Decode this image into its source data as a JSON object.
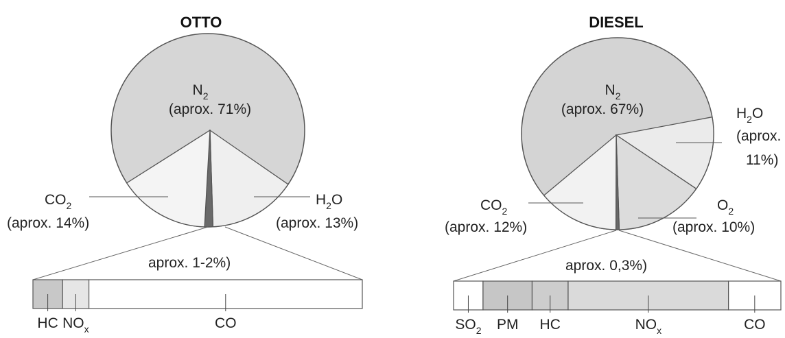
{
  "chart_data": [
    {
      "type": "pie",
      "title": "OTTO",
      "slices": [
        {
          "label": "N",
          "sub": "2",
          "value_text": "(aprox. 71%)",
          "value": 71,
          "color": "#d6d6d6"
        },
        {
          "label": "H",
          "sub": "2",
          "suffix": "O",
          "value_text": "(aprox. 13%)",
          "value": 13,
          "color": "#efefef"
        },
        {
          "label": "CO",
          "sub": "2",
          "value_text": "(aprox. 14%)",
          "value": 14,
          "color": "#f4f4f4"
        },
        {
          "label": "other",
          "value": 1.5,
          "color": "#6a6a6a"
        }
      ],
      "breakdown": {
        "title": "aprox. 1-2%)",
        "items": [
          {
            "label": "HC",
            "sub": "",
            "share": 0.09,
            "color": "#c8c8c8"
          },
          {
            "label": "NO",
            "sub": "x",
            "share": 0.08,
            "color": "#e6e6e6"
          },
          {
            "label": "CO",
            "sub": "",
            "share": 0.83,
            "color": "#ffffff"
          }
        ]
      }
    },
    {
      "type": "pie",
      "title": "DIESEL",
      "slices": [
        {
          "label": "N",
          "sub": "2",
          "value_text": "(aprox. 67%)",
          "value": 67,
          "color": "#d4d4d4"
        },
        {
          "label": "H",
          "sub": "2",
          "suffix": "O",
          "value_text_lines": [
            "(aprox.",
            "11%)"
          ],
          "value": 11,
          "color": "#ebebeb"
        },
        {
          "label": "O",
          "sub": "2",
          "value_text": "(aprox. 10%)",
          "value": 10,
          "color": "#dcdcdc"
        },
        {
          "label": "CO",
          "sub": "2",
          "value_text": "(aprox. 12%)",
          "value": 12,
          "color": "#f2f2f2"
        },
        {
          "label": "other",
          "value": 0.3,
          "color": "#6a6a6a"
        }
      ],
      "breakdown": {
        "title": "aprox. 0,3%)",
        "items": [
          {
            "label": "SO",
            "sub": "2",
            "share": 0.09,
            "color": "#ffffff"
          },
          {
            "label": "PM",
            "sub": "",
            "share": 0.15,
            "color": "#c6c6c6"
          },
          {
            "label": "HC",
            "sub": "",
            "share": 0.11,
            "color": "#cdcdcd"
          },
          {
            "label": "NO",
            "sub": "x",
            "share": 0.49,
            "color": "#dadada"
          },
          {
            "label": "CO",
            "sub": "",
            "share": 0.16,
            "color": "#ffffff"
          }
        ]
      }
    }
  ]
}
